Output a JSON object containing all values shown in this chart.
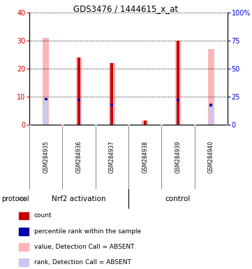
{
  "title": "GDS3476 / 1444615_x_at",
  "samples": [
    "GSM284935",
    "GSM284936",
    "GSM284937",
    "GSM284938",
    "GSM284939",
    "GSM284940"
  ],
  "red_bars": [
    0,
    24,
    22,
    1.5,
    30,
    0
  ],
  "pink_bars": [
    31,
    24,
    22,
    1.5,
    30,
    27
  ],
  "blue_rank": [
    9.2,
    8.8,
    7.2,
    0,
    8.8,
    7.0
  ],
  "light_blue_rank": [
    9.2,
    8.8,
    7.2,
    0,
    8.8,
    7.0
  ],
  "ylim_left": [
    0,
    40
  ],
  "ylim_right": [
    0,
    100
  ],
  "yticks_left": [
    0,
    10,
    20,
    30,
    40
  ],
  "yticks_right": [
    0,
    25,
    50,
    75,
    100
  ],
  "ytick_labels_right": [
    "0",
    "25",
    "50",
    "75",
    "100%"
  ],
  "left_axis_color": "#cc0000",
  "right_axis_color": "#0000cc",
  "background_color": "#ffffff",
  "label_area_color": "#c8c8c8",
  "group_color": "#90EE90",
  "pink_color": "#ffb6b6",
  "light_blue_color": "#c8c8f0",
  "red_color": "#cc0000",
  "blue_color": "#0000aa",
  "protocol_label": "protocol",
  "group1_label": "Nrf2 activation",
  "group2_label": "control",
  "legend_labels": [
    "count",
    "percentile rank within the sample",
    "value, Detection Call = ABSENT",
    "rank, Detection Call = ABSENT"
  ],
  "legend_colors": [
    "#cc0000",
    "#0000aa",
    "#ffb6b6",
    "#c8c8f0"
  ],
  "figsize": [
    3.61,
    3.84
  ],
  "dpi": 100
}
